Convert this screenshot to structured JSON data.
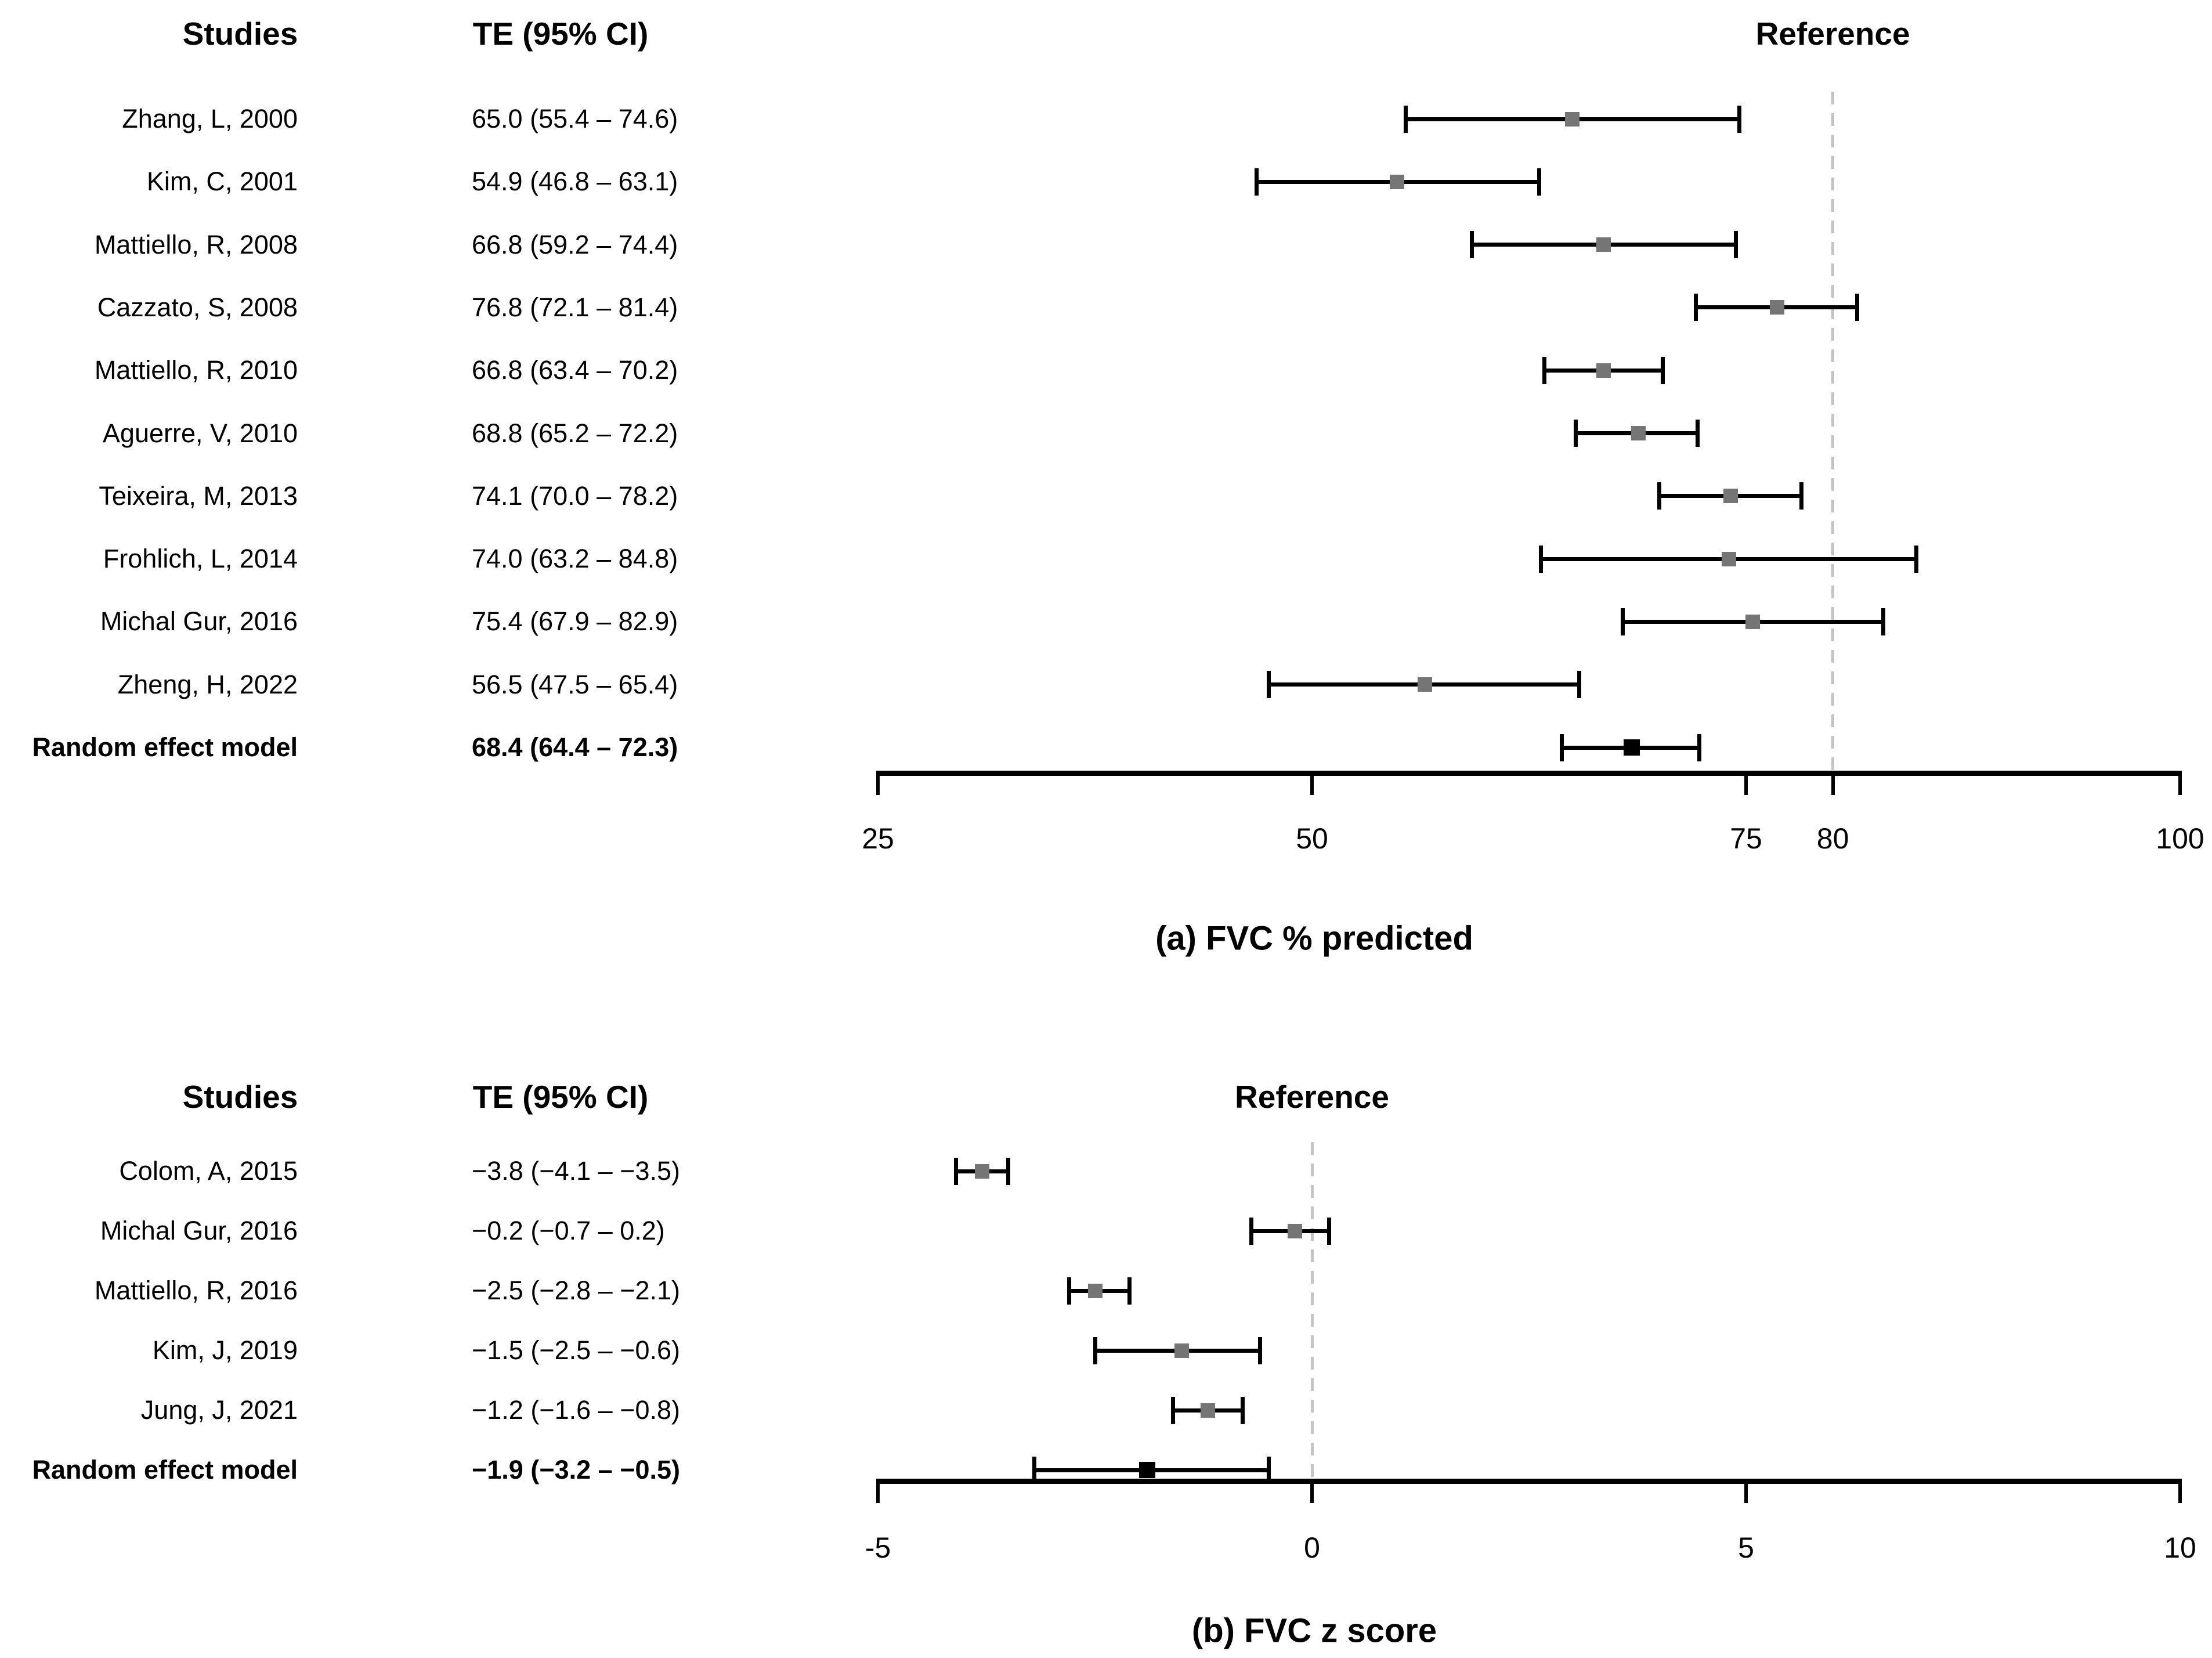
{
  "figure_title": "",
  "colors": {
    "text": "#000000",
    "axis": "#000000",
    "ci_bar": "#000000",
    "study_marker": "#757575",
    "summary_marker": "#000000",
    "reference_line": "#c4c4c4"
  },
  "chart_data": [
    {
      "type": "forest",
      "caption": "(a) FVC % predicted",
      "columns": {
        "studies": "Studies",
        "te": "TE (95% CI)",
        "reference": "Reference"
      },
      "axis": {
        "min": 25,
        "max": 100,
        "ticks": [
          25,
          50,
          75,
          80,
          100
        ],
        "reference_value": 80,
        "grid": false
      },
      "studies": [
        {
          "label": "Zhang, L, 2000",
          "te": "65.0 (55.4 – 74.6)",
          "est": 65.0,
          "lo": 55.4,
          "hi": 74.6
        },
        {
          "label": "Kim, C, 2001",
          "te": "54.9 (46.8 – 63.1)",
          "est": 54.9,
          "lo": 46.8,
          "hi": 63.1
        },
        {
          "label": "Mattiello, R, 2008",
          "te": "66.8 (59.2 – 74.4)",
          "est": 66.8,
          "lo": 59.2,
          "hi": 74.4
        },
        {
          "label": "Cazzato, S, 2008",
          "te": "76.8 (72.1 – 81.4)",
          "est": 76.8,
          "lo": 72.1,
          "hi": 81.4
        },
        {
          "label": "Mattiello, R, 2010",
          "te": "66.8 (63.4 – 70.2)",
          "est": 66.8,
          "lo": 63.4,
          "hi": 70.2
        },
        {
          "label": "Aguerre, V, 2010",
          "te": "68.8 (65.2 – 72.2)",
          "est": 68.8,
          "lo": 65.2,
          "hi": 72.2
        },
        {
          "label": "Teixeira, M, 2013",
          "te": "74.1 (70.0 – 78.2)",
          "est": 74.1,
          "lo": 70.0,
          "hi": 78.2
        },
        {
          "label": "Frohlich, L, 2014",
          "te": "74.0 (63.2 – 84.8)",
          "est": 74.0,
          "lo": 63.2,
          "hi": 84.8
        },
        {
          "label": "Michal Gur, 2016",
          "te": "75.4 (67.9 – 82.9)",
          "est": 75.4,
          "lo": 67.9,
          "hi": 82.9
        },
        {
          "label": "Zheng, H, 2022",
          "te": "56.5 (47.5 – 65.4)",
          "est": 56.5,
          "lo": 47.5,
          "hi": 65.4
        }
      ],
      "summary": {
        "label": "Random effect model",
        "te": "68.4 (64.4 – 72.3)",
        "est": 68.4,
        "lo": 64.4,
        "hi": 72.3
      }
    },
    {
      "type": "forest",
      "caption": "(b) FVC z score",
      "columns": {
        "studies": "Studies",
        "te": "TE (95% CI)",
        "reference": "Reference"
      },
      "axis": {
        "min": -5,
        "max": 10,
        "ticks": [
          -5,
          0,
          5,
          10
        ],
        "reference_value": 0,
        "grid": false
      },
      "studies": [
        {
          "label": "Colom, A, 2015",
          "te": "−3.8 (−4.1 – −3.5)",
          "est": -3.8,
          "lo": -4.1,
          "hi": -3.5
        },
        {
          "label": "Michal Gur, 2016",
          "te": "−0.2 (−0.7 – 0.2)",
          "est": -0.2,
          "lo": -0.7,
          "hi": 0.2
        },
        {
          "label": "Mattiello, R, 2016",
          "te": "−2.5 (−2.8 – −2.1)",
          "est": -2.5,
          "lo": -2.8,
          "hi": -2.1
        },
        {
          "label": "Kim, J, 2019",
          "te": "−1.5 (−2.5 – −0.6)",
          "est": -1.5,
          "lo": -2.5,
          "hi": -0.6
        },
        {
          "label": "Jung, J, 2021",
          "te": "−1.2 (−1.6 – −0.8)",
          "est": -1.2,
          "lo": -1.6,
          "hi": -0.8
        }
      ],
      "summary": {
        "label": "Random effect model",
        "te": "−1.9 (−3.2 – −0.5)",
        "est": -1.9,
        "lo": -3.2,
        "hi": -0.5
      }
    }
  ]
}
